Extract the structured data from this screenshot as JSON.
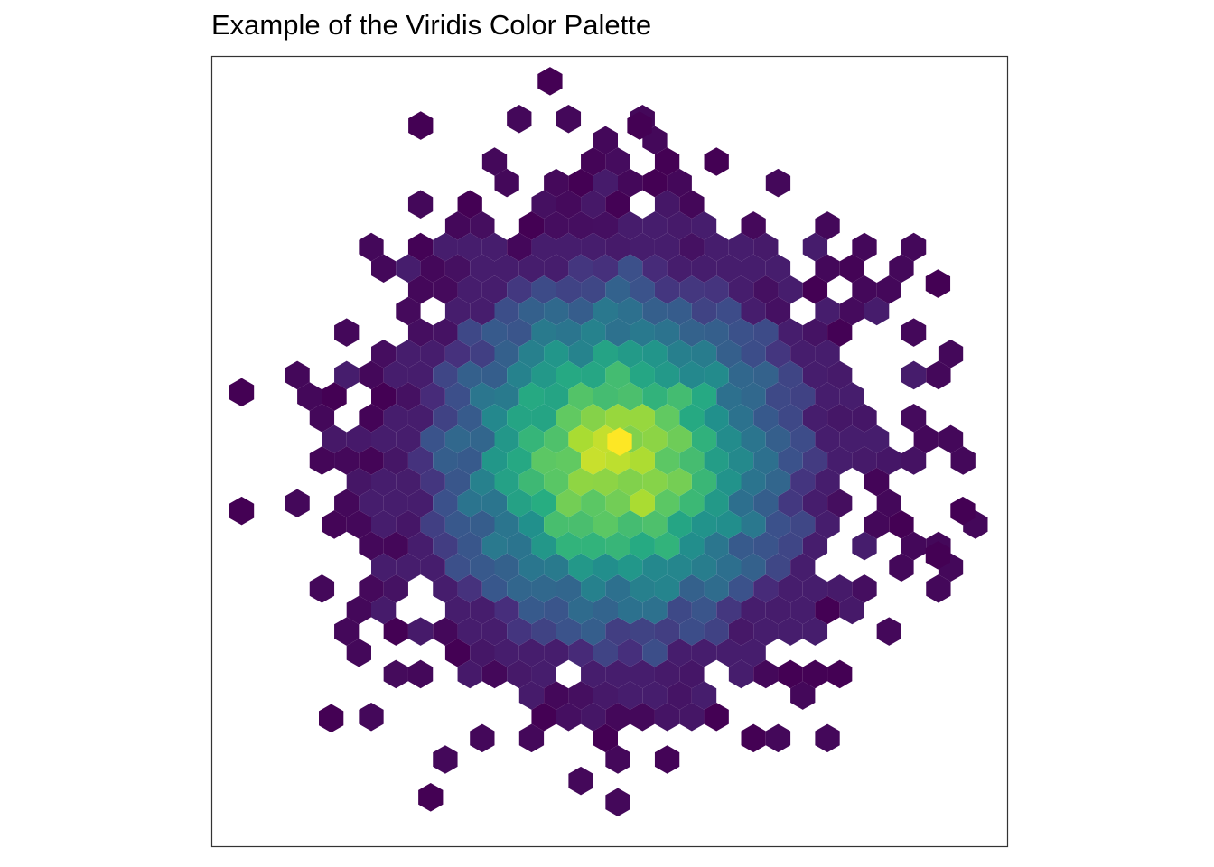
{
  "chart_data": {
    "type": "heatmap",
    "subtype": "hexbin",
    "title": "Example of the Viridis Color Palette",
    "xlabel": "",
    "ylabel": "",
    "axes_visible": false,
    "grid": false,
    "legend": "none",
    "color_palette": "viridis",
    "palette_colors": [
      "#440154",
      "#472D7B",
      "#3B528B",
      "#2C728E",
      "#21908C",
      "#27AD81",
      "#5DC863",
      "#AADC32",
      "#FDE725"
    ],
    "x_range": [
      -4,
      4
    ],
    "y_range": [
      -4,
      4
    ],
    "count_range": [
      1,
      14
    ],
    "distribution": "bivariate normal, centered near (0, 0)",
    "peak_bin": {
      "x": 0.1,
      "y": 0.1,
      "count": 14
    },
    "isolated_outlier_bins": [
      {
        "x": -0.6,
        "y": 3.75
      },
      {
        "x": -1.9,
        "y": 3.3
      },
      {
        "x": 0.3,
        "y": 3.3
      },
      {
        "x": 3.3,
        "y": 1.7
      },
      {
        "x": -3.7,
        "y": 0.6
      },
      {
        "x": -3.7,
        "y": -0.6
      },
      {
        "x": 3.55,
        "y": -0.6
      },
      {
        "x": 3.3,
        "y": -1.05
      },
      {
        "x": -2.8,
        "y": -2.7
      },
      {
        "x": -1.8,
        "y": -3.5
      }
    ],
    "empty_interior_bins": [
      {
        "x": 1.15,
        "y": 2.3
      },
      {
        "x": -2.4,
        "y": 1.45
      },
      {
        "x": 2.6,
        "y": 0.65
      },
      {
        "x": -3.05,
        "y": -0.2
      },
      {
        "x": -0.45,
        "y": -2.3
      }
    ]
  }
}
